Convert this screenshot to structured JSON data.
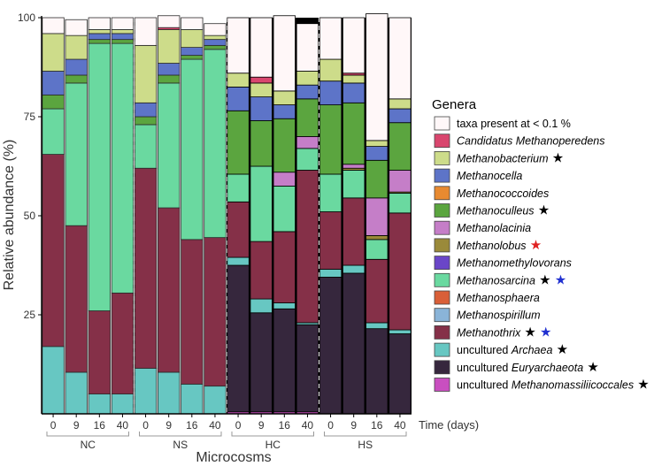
{
  "chart_data": {
    "type": "bar",
    "stacked": true,
    "title": "",
    "ylabel": "Relative abundance (%)",
    "xlabel": "Microcosms",
    "time_label": "Time (days)",
    "ylim": [
      0,
      100
    ],
    "yticks": [
      25,
      50,
      75,
      100
    ],
    "groups": [
      {
        "name": "NC",
        "times": [
          "0",
          "9",
          "16",
          "40"
        ],
        "dark": false
      },
      {
        "name": "NS",
        "times": [
          "0",
          "9",
          "16",
          "40"
        ],
        "dark": false
      },
      {
        "name": "HC",
        "times": [
          "0",
          "9",
          "16",
          "40"
        ],
        "dark": true
      },
      {
        "name": "HS",
        "times": [
          "0",
          "9",
          "16",
          "40"
        ],
        "dark": true
      }
    ],
    "legend_title": "Genera",
    "legend": [
      {
        "key": "mmc",
        "parts": [
          {
            "t": "uncultured ",
            "i": false
          },
          {
            "t": "Methanomassiliicoccales",
            "i": true
          }
        ],
        "stars": [
          "black"
        ],
        "color": "#c94fc0"
      },
      {
        "key": "ueury",
        "parts": [
          {
            "t": "uncultured ",
            "i": false
          },
          {
            "t": "Euryarchaeota",
            "i": true
          }
        ],
        "stars": [
          "black"
        ],
        "color": "#36273d"
      },
      {
        "key": "uarch",
        "parts": [
          {
            "t": "uncultured ",
            "i": false
          },
          {
            "t": "Archaea",
            "i": true
          }
        ],
        "stars": [
          "black"
        ],
        "color": "#67c7c2"
      },
      {
        "key": "mthrix",
        "parts": [
          {
            "t": "Methanothrix",
            "i": true
          }
        ],
        "stars": [
          "black",
          "blue"
        ],
        "color": "#853048"
      },
      {
        "key": "mspir",
        "parts": [
          {
            "t": "Methanospirillum",
            "i": true
          }
        ],
        "stars": [],
        "color": "#8ab4d8"
      },
      {
        "key": "msphae",
        "parts": [
          {
            "t": "Methanosphaera",
            "i": true
          }
        ],
        "stars": [],
        "color": "#d95f38"
      },
      {
        "key": "msarc",
        "parts": [
          {
            "t": "Methanosarcina",
            "i": true
          }
        ],
        "stars": [
          "black",
          "blue"
        ],
        "color": "#6ad9a0"
      },
      {
        "key": "mmethyl",
        "parts": [
          {
            "t": "Methanomethylovorans",
            "i": true
          }
        ],
        "stars": [],
        "color": "#6a46c8"
      },
      {
        "key": "mlobus",
        "parts": [
          {
            "t": "Methanolobus",
            "i": true
          }
        ],
        "stars": [
          "red"
        ],
        "color": "#9a8a3a"
      },
      {
        "key": "mlac",
        "parts": [
          {
            "t": "Methanolacinia",
            "i": true
          }
        ],
        "stars": [],
        "color": "#c57ec8"
      },
      {
        "key": "mcull",
        "parts": [
          {
            "t": "Methanoculleus",
            "i": true
          }
        ],
        "stars": [
          "black"
        ],
        "color": "#5ba53f"
      },
      {
        "key": "mcocc",
        "parts": [
          {
            "t": "Methanococcoides",
            "i": true
          }
        ],
        "stars": [],
        "color": "#e88a30"
      },
      {
        "key": "mcella",
        "parts": [
          {
            "t": "Methanocella",
            "i": true
          }
        ],
        "stars": [],
        "color": "#5d74c8"
      },
      {
        "key": "mbact",
        "parts": [
          {
            "t": "Methanobacterium",
            "i": true
          }
        ],
        "stars": [
          "black"
        ],
        "color": "#cddc8a"
      },
      {
        "key": "cmp",
        "parts": [
          {
            "t": "Candidatus Methanoperedens",
            "i": true
          }
        ],
        "stars": [],
        "color": "#d9466e"
      },
      {
        "key": "other",
        "parts": [
          {
            "t": "taxa present at < 0.1 %",
            "i": false
          }
        ],
        "stars": [],
        "color": "#fff7f8"
      }
    ],
    "star_colors": {
      "black": "#000000",
      "red": "#e02020",
      "blue": "#2030d0"
    },
    "series": [
      {
        "name": "uncultured Methanomassiliicoccales",
        "values": [
          0,
          0,
          0,
          0,
          0,
          0,
          0,
          0,
          0.5,
          0.5,
          0.5,
          0.5,
          0,
          0,
          0,
          0
        ]
      },
      {
        "name": "uncultured Euryarchaeota",
        "values": [
          0,
          0,
          0,
          0,
          0,
          0,
          0,
          0,
          37,
          25,
          26,
          22,
          34.5,
          35.5,
          21.5,
          20.2
        ]
      },
      {
        "name": "uncultured Archaea",
        "values": [
          17,
          10.5,
          5,
          5,
          11.5,
          10.5,
          7.5,
          7,
          2,
          3.5,
          1.5,
          0.5,
          2,
          2,
          1.5,
          1
        ]
      },
      {
        "name": "Methanothrix",
        "values": [
          48.5,
          37,
          21,
          25.5,
          50.5,
          41.5,
          36.5,
          37.5,
          14,
          14.5,
          18,
          38.5,
          14.5,
          17,
          16,
          29.5
        ]
      },
      {
        "name": "Methanospirillum",
        "values": [
          0,
          0,
          0,
          0,
          0,
          0,
          0,
          0,
          0,
          0,
          0,
          0,
          0,
          0,
          0,
          0
        ]
      },
      {
        "name": "Methanosphaera",
        "values": [
          0,
          0,
          0,
          0,
          0,
          0,
          0,
          0,
          0,
          0,
          0,
          0,
          0,
          0,
          0,
          0
        ]
      },
      {
        "name": "Methanosarcina",
        "values": [
          11.5,
          36,
          67.5,
          63,
          11,
          31.5,
          45.5,
          47.5,
          7,
          19,
          11.5,
          5.5,
          9.5,
          7,
          5,
          5
        ]
      },
      {
        "name": "Methanomethylovorans",
        "values": [
          0,
          0,
          0,
          0,
          0,
          0,
          0,
          0,
          0,
          0,
          0,
          0,
          0,
          0,
          0,
          0
        ]
      },
      {
        "name": "Methanolobus",
        "values": [
          0,
          0,
          0,
          0,
          0,
          0,
          0,
          0,
          0,
          0,
          0,
          0,
          0,
          0.5,
          1,
          0.3
        ]
      },
      {
        "name": "Methanolacinia",
        "values": [
          0,
          0,
          0,
          0,
          0,
          0,
          0,
          0,
          0,
          0,
          3.5,
          3,
          0,
          1,
          9.5,
          5.5
        ]
      },
      {
        "name": "Methanoculleus",
        "values": [
          3.5,
          2,
          1,
          1,
          2,
          2,
          1,
          1,
          16,
          11.5,
          13.5,
          9.5,
          17.5,
          15.5,
          9.5,
          12
        ]
      },
      {
        "name": "Methanococcoides",
        "values": [
          0,
          0,
          0,
          0,
          0,
          0,
          0,
          0,
          0,
          0,
          0,
          0,
          0,
          0,
          0,
          0
        ]
      },
      {
        "name": "Methanocella",
        "values": [
          6,
          4,
          1.5,
          1.5,
          3.5,
          3,
          2,
          1.5,
          6,
          6,
          3.5,
          3.5,
          6,
          5,
          3.5,
          3.5
        ]
      },
      {
        "name": "Methanobacterium",
        "values": [
          9.5,
          6,
          1,
          1,
          14.5,
          8.5,
          4.5,
          1,
          3.5,
          3.5,
          3.5,
          3.5,
          5.5,
          2,
          1.5,
          2.5
        ]
      },
      {
        "name": "Candidatus Methanoperedens",
        "values": [
          0,
          0,
          0,
          0,
          0,
          0.5,
          0,
          0,
          0,
          1.5,
          0,
          0,
          0,
          0.5,
          0,
          0
        ]
      },
      {
        "name": "taxa present at < 0.1 %",
        "values": [
          4,
          4,
          3,
          3,
          7,
          3,
          3,
          3,
          14,
          15,
          19,
          12,
          10.5,
          14,
          32,
          20.5
        ]
      }
    ]
  }
}
